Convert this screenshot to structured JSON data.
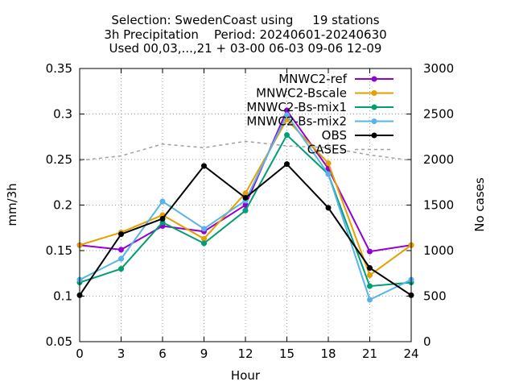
{
  "chart_data": {
    "type": "line",
    "title_lines": [
      "Selection: SwedenCoast using     19 stations",
      "3h Precipitation    Period: 20240601-20240630",
      "Used 00,03,...,21 + 03-00 06-03 09-06 12-09"
    ],
    "xlabel": "Hour",
    "ylabel": "mm/3h",
    "y2label": "No cases",
    "xlim": [
      0,
      24
    ],
    "ylim": [
      0.05,
      0.35
    ],
    "y2lim": [
      0,
      3000
    ],
    "xticks": [
      0,
      3,
      6,
      9,
      12,
      15,
      18,
      21,
      24
    ],
    "yticks": [
      0.05,
      0.1,
      0.15,
      0.2,
      0.25,
      0.3,
      0.35
    ],
    "ytick_labels": [
      "0.05",
      "0.1",
      "0.15",
      "0.2",
      "0.25",
      "0.3",
      "0.35"
    ],
    "y2ticks": [
      0,
      500,
      1000,
      1500,
      2000,
      2500,
      3000
    ],
    "grid": true,
    "legend_position": "top-right",
    "x": [
      0,
      3,
      6,
      9,
      12,
      15,
      18,
      21,
      24
    ],
    "series": [
      {
        "name": "MNWC2-ref",
        "color": "#9400d3",
        "axis": "y",
        "dashed": false,
        "marker": true,
        "values": [
          0.156,
          0.151,
          0.177,
          0.171,
          0.2,
          0.304,
          0.24,
          0.149,
          0.156
        ]
      },
      {
        "name": "MNWC2-Bscale",
        "color": "#e69f00",
        "axis": "y",
        "dashed": false,
        "marker": true,
        "values": [
          0.156,
          0.17,
          0.189,
          0.163,
          0.213,
          0.294,
          0.246,
          0.123,
          0.156
        ]
      },
      {
        "name": "MNWC2-Bs-mix1",
        "color": "#009e73",
        "axis": "y",
        "dashed": false,
        "marker": true,
        "values": [
          0.115,
          0.13,
          0.181,
          0.158,
          0.194,
          0.277,
          0.234,
          0.111,
          0.115
        ]
      },
      {
        "name": "MNWC2-Bs-mix2",
        "color": "#56b4e9",
        "axis": "y",
        "dashed": false,
        "marker": true,
        "values": [
          0.118,
          0.141,
          0.204,
          0.174,
          0.205,
          0.299,
          0.234,
          0.096,
          0.118
        ]
      },
      {
        "name": "OBS",
        "color": "#000000",
        "axis": "y",
        "dashed": false,
        "marker": true,
        "values": [
          0.101,
          0.168,
          0.185,
          0.243,
          0.208,
          0.245,
          0.197,
          0.131,
          0.101
        ]
      },
      {
        "name": "CASES",
        "color": "#a0a0a0",
        "axis": "y2",
        "dashed": true,
        "marker": false,
        "values": [
          1990,
          2040,
          2170,
          2130,
          2200,
          2150,
          2130,
          2050,
          1990
        ]
      }
    ]
  }
}
